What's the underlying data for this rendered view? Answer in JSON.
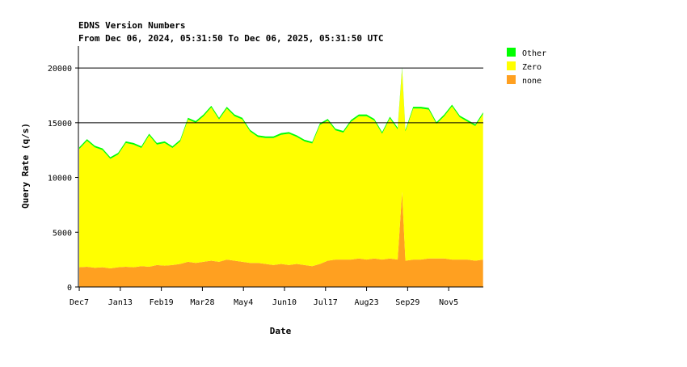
{
  "chart_data": {
    "type": "area",
    "stacked": true,
    "title": "EDNS Version Numbers",
    "subtitle": "From Dec 06, 2024, 05:31:50 To Dec 06, 2025, 05:31:50 UTC",
    "xlabel": "Date",
    "ylabel": "Query Rate (q/s)",
    "x_tick_labels": [
      "Dec7",
      "Jan13",
      "Feb19",
      "Mar28",
      "May4",
      "Jun10",
      "Jul17",
      "Aug23",
      "Sep29",
      "Nov5"
    ],
    "y_ticks": [
      0,
      5000,
      10000,
      15000,
      20000
    ],
    "ylim": [
      0,
      22000
    ],
    "grid_lines_y": [
      15000,
      20000
    ],
    "legend_position": "right",
    "colors": {
      "Other": "#00ff00",
      "Zero": "#ffff00",
      "none": "#ffa020",
      "grid": "#000000",
      "axis": "#000000"
    },
    "legend": [
      "Other",
      "Zero",
      "none"
    ],
    "x": [
      "2024-12-07",
      "2024-12-14",
      "2024-12-21",
      "2024-12-28",
      "2025-01-04",
      "2025-01-11",
      "2025-01-18",
      "2025-01-25",
      "2025-02-01",
      "2025-02-08",
      "2025-02-15",
      "2025-02-22",
      "2025-03-01",
      "2025-03-08",
      "2025-03-15",
      "2025-03-22",
      "2025-03-29",
      "2025-04-05",
      "2025-04-12",
      "2025-04-19",
      "2025-04-26",
      "2025-05-03",
      "2025-05-10",
      "2025-05-17",
      "2025-05-24",
      "2025-05-31",
      "2025-06-07",
      "2025-06-14",
      "2025-06-21",
      "2025-06-28",
      "2025-07-05",
      "2025-07-12",
      "2025-07-19",
      "2025-07-26",
      "2025-08-02",
      "2025-08-09",
      "2025-08-16",
      "2025-08-23",
      "2025-08-30",
      "2025-09-06",
      "2025-09-13",
      "2025-09-20",
      "2025-09-24",
      "2025-09-27",
      "2025-10-04",
      "2025-10-11",
      "2025-10-18",
      "2025-10-25",
      "2025-11-01",
      "2025-11-08",
      "2025-11-15",
      "2025-11-22",
      "2025-11-29",
      "2025-12-06"
    ],
    "series": [
      {
        "name": "none",
        "values": [
          1800,
          1850,
          1750,
          1800,
          1700,
          1800,
          1850,
          1800,
          1900,
          1850,
          2000,
          1950,
          2000,
          2100,
          2300,
          2200,
          2300,
          2400,
          2300,
          2500,
          2400,
          2300,
          2200,
          2200,
          2100,
          2000,
          2100,
          2000,
          2100,
          2000,
          1900,
          2100,
          2400,
          2500,
          2500,
          2500,
          2600,
          2500,
          2600,
          2500,
          2600,
          2500,
          8700,
          2400,
          2500,
          2500,
          2600,
          2600,
          2600,
          2500,
          2500,
          2500,
          2400,
          2500
        ]
      },
      {
        "name": "Zero",
        "values": [
          10800,
          11500,
          11000,
          10700,
          10000,
          10300,
          11300,
          11200,
          10800,
          12000,
          11000,
          11200,
          10700,
          11200,
          13000,
          12800,
          13300,
          14000,
          13000,
          13800,
          13200,
          13000,
          12000,
          11500,
          11500,
          11600,
          11800,
          12000,
          11600,
          11300,
          11200,
          12700,
          12800,
          11800,
          11600,
          12600,
          13000,
          13100,
          12600,
          11500,
          12800,
          11900,
          11200,
          11800,
          13800,
          13800,
          13600,
          12300,
          13000,
          14000,
          13000,
          12600,
          12300,
          13300
        ]
      },
      {
        "name": "Other",
        "values": [
          150,
          150,
          150,
          150,
          150,
          150,
          150,
          150,
          150,
          150,
          150,
          150,
          150,
          150,
          150,
          150,
          150,
          150,
          150,
          150,
          150,
          150,
          150,
          150,
          150,
          150,
          150,
          150,
          150,
          150,
          150,
          150,
          150,
          150,
          150,
          150,
          150,
          150,
          150,
          150,
          150,
          150,
          150,
          150,
          150,
          150,
          150,
          150,
          150,
          150,
          150,
          150,
          150,
          150
        ]
      }
    ]
  }
}
